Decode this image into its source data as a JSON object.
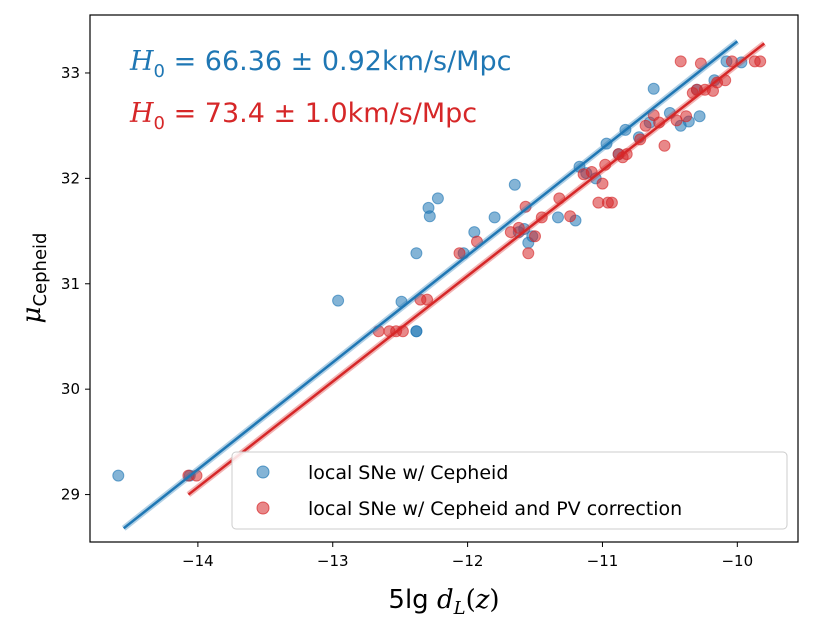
{
  "chart_data": {
    "type": "scatter",
    "xlabel": "5lg d_L(z)",
    "ylabel": "μ_Cepheid",
    "xlim": [
      -14.8,
      -9.55
    ],
    "ylim": [
      28.55,
      33.55
    ],
    "xticks": [
      -14,
      -13,
      -12,
      -11,
      -10
    ],
    "yticks": [
      29,
      30,
      31,
      32,
      33
    ],
    "xtick_labels": [
      "−14",
      "−13",
      "−12",
      "−11",
      "−10"
    ],
    "ytick_labels": [
      "29",
      "30",
      "31",
      "32",
      "33"
    ],
    "grid": false,
    "legend_position": "lower-right",
    "annotations": [
      {
        "text": "H_0 = 66.36 ± 0.92km/s/Mpc",
        "color": "#1f77b4"
      },
      {
        "text": "H_0 = 73.4 ± 1.0km/s/Mpc",
        "color": "#d62728"
      }
    ],
    "series": [
      {
        "name": "local SNe w/ Cepheid",
        "color": "#1f77b4",
        "fit": {
          "x": [
            -14.55,
            -10.0
          ],
          "y": [
            28.68,
            33.3
          ]
        },
        "x": [
          -14.59,
          -14.06,
          -12.96,
          -12.49,
          -12.38,
          -12.38,
          -12.29,
          -12.28,
          -12.22,
          -12.38,
          -12.03,
          -11.95,
          -11.8,
          -11.65,
          -11.62,
          -11.55,
          -11.58,
          -11.52,
          -11.33,
          -11.2,
          -11.17,
          -11.12,
          -11.05,
          -10.97,
          -10.88,
          -10.83,
          -10.73,
          -10.65,
          -10.62,
          -10.5,
          -10.42,
          -10.36,
          -10.3,
          -10.28,
          -10.17,
          -10.08,
          -9.97
        ],
        "y": [
          29.18,
          29.18,
          30.84,
          30.83,
          30.55,
          30.55,
          31.72,
          31.64,
          31.81,
          31.29,
          31.29,
          31.49,
          31.63,
          31.94,
          31.49,
          31.39,
          31.52,
          31.45,
          31.63,
          31.6,
          32.11,
          32.05,
          32.0,
          32.33,
          32.23,
          32.46,
          32.39,
          32.53,
          32.85,
          32.62,
          32.5,
          32.54,
          32.84,
          32.59,
          32.93,
          33.11,
          33.1
        ]
      },
      {
        "name": "local SNe w/ Cepheid and PV correction",
        "color": "#d62728",
        "fit": {
          "x": [
            -14.07,
            -9.8
          ],
          "y": [
            29.0,
            33.28
          ]
        },
        "x": [
          -14.07,
          -14.01,
          -12.66,
          -12.58,
          -12.53,
          -12.48,
          -12.35,
          -12.3,
          -12.06,
          -11.93,
          -11.68,
          -11.62,
          -11.57,
          -11.55,
          -11.5,
          -11.45,
          -11.32,
          -11.24,
          -11.14,
          -11.08,
          -11.03,
          -11.0,
          -10.98,
          -10.96,
          -10.93,
          -10.88,
          -10.85,
          -10.82,
          -10.72,
          -10.68,
          -10.62,
          -10.58,
          -10.54,
          -10.45,
          -10.42,
          -10.38,
          -10.33,
          -10.3,
          -10.27,
          -10.24,
          -10.18,
          -10.15,
          -10.09,
          -10.04,
          -9.87,
          -9.83
        ],
        "y": [
          29.18,
          29.18,
          30.55,
          30.55,
          30.55,
          30.55,
          30.85,
          30.85,
          31.29,
          31.4,
          31.49,
          31.53,
          31.73,
          31.29,
          31.45,
          31.63,
          31.81,
          31.64,
          32.04,
          32.06,
          31.77,
          31.95,
          32.13,
          31.77,
          31.77,
          32.23,
          32.2,
          32.23,
          32.37,
          32.5,
          32.6,
          32.53,
          32.31,
          32.55,
          33.11,
          32.59,
          32.81,
          32.84,
          33.09,
          32.84,
          32.83,
          32.91,
          32.93,
          33.11,
          33.11,
          33.11
        ]
      }
    ]
  }
}
